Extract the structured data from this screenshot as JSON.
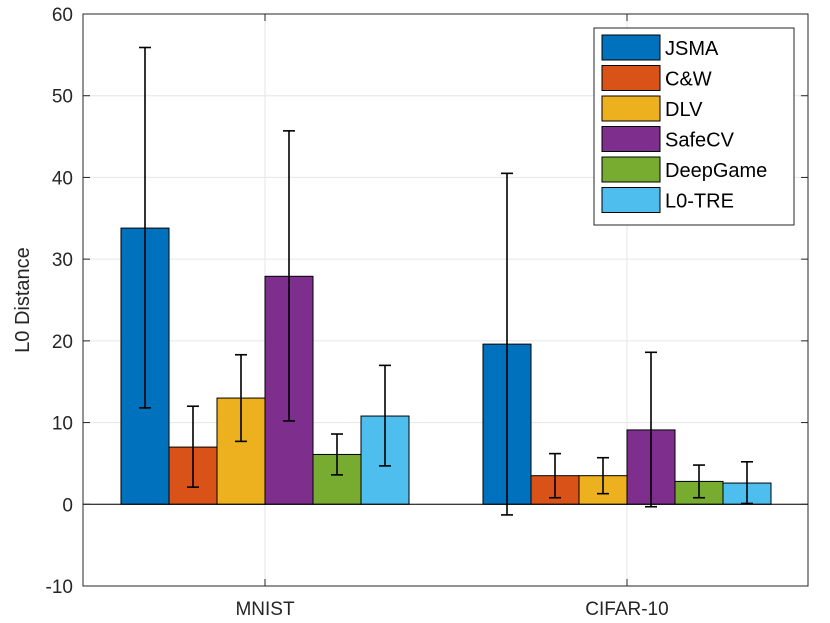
{
  "chart_data": {
    "type": "bar",
    "title": "",
    "xlabel": "",
    "ylabel": "L0 Distance",
    "ylim": [
      -10,
      60
    ],
    "yticks": [
      -10,
      0,
      10,
      20,
      30,
      40,
      50,
      60
    ],
    "grid": true,
    "legend_position": "top-right",
    "categories": [
      "MNIST",
      "CIFAR-10"
    ],
    "series": [
      {
        "name": "JSMA",
        "color": "#0072BD",
        "values": [
          33.8,
          19.6
        ],
        "err_low": [
          11.8,
          -1.3
        ],
        "err_high": [
          55.9,
          40.5
        ]
      },
      {
        "name": "C&W",
        "color": "#D95319",
        "values": [
          7.0,
          3.5
        ],
        "err_low": [
          2.1,
          0.8
        ],
        "err_high": [
          12.0,
          6.2
        ]
      },
      {
        "name": "DLV",
        "color": "#EDB120",
        "values": [
          13.0,
          3.5
        ],
        "err_low": [
          7.7,
          1.3
        ],
        "err_high": [
          18.3,
          5.7
        ]
      },
      {
        "name": "SafeCV",
        "color": "#7E2F8E",
        "values": [
          27.9,
          9.1
        ],
        "err_low": [
          10.2,
          -0.3
        ],
        "err_high": [
          45.7,
          18.6
        ]
      },
      {
        "name": "DeepGame",
        "color": "#77AC30",
        "values": [
          6.1,
          2.8
        ],
        "err_low": [
          3.6,
          0.8
        ],
        "err_high": [
          8.6,
          4.8
        ]
      },
      {
        "name": "L0-TRE",
        "color": "#4DBEEE",
        "values": [
          10.8,
          2.6
        ],
        "err_low": [
          4.7,
          0.1
        ],
        "err_high": [
          17.0,
          5.2
        ]
      }
    ]
  }
}
